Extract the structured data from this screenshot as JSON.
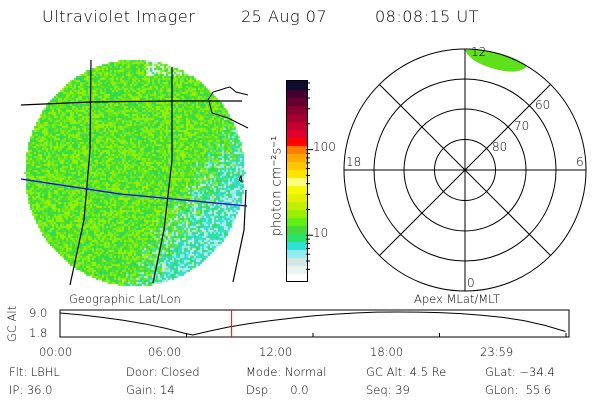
{
  "header": {
    "instrument": "Ultraviolet Imager",
    "date": "25 Aug 07",
    "time": "08:08:15 UT"
  },
  "geo_panel": {
    "label": "Geographic Lat/Lon",
    "grid_color": "#000000",
    "equator_color": "#0000ff"
  },
  "colorbar": {
    "unit_label": "photon cm⁻²s⁻¹",
    "scale": "log",
    "range": [
      3,
      650
    ],
    "tick_labels": [
      "100",
      "10"
    ],
    "colors": [
      "#ffffff",
      "#eaf4ee",
      "#d4e6e4",
      "#90ecf2",
      "#2ee0d8",
      "#2ae06c",
      "#46d83c",
      "#60f012",
      "#98f000",
      "#c0f000",
      "#e4f000",
      "#f6fa00",
      "#ffff80",
      "#ffe400",
      "#ffc800",
      "#ffa800",
      "#ff7e00",
      "#ff0000",
      "#e00030",
      "#c40030",
      "#a60030",
      "#860030",
      "#660030",
      "#440030",
      "#0c0c30"
    ]
  },
  "polar_panel": {
    "label": "Apex MLat/MLT",
    "mlt_labels": {
      "top": "12",
      "right": "6",
      "bottom": "0",
      "left": "18"
    },
    "lat_labels": [
      "80",
      "70",
      "60"
    ]
  },
  "altitude_plot": {
    "ylabel": "GC Alt",
    "ytick_labels": [
      "9.0",
      "1.8"
    ],
    "ylim": [
      1.8,
      9.0
    ],
    "xtick_labels": [
      "00:00",
      "06:00",
      "12:00",
      "18:00",
      "23:59"
    ],
    "current_time_hours": 8.14,
    "marker_color": "#ff0000",
    "hours": [
      0,
      1,
      2,
      3,
      4,
      5,
      6,
      6.3,
      7,
      8,
      9,
      10,
      11,
      12,
      13,
      14,
      15,
      16,
      17,
      18,
      19,
      20,
      21,
      22,
      23,
      23.98
    ],
    "altitude_re": [
      8.7,
      8.1,
      7.3,
      6.4,
      5.3,
      3.9,
      2.2,
      1.8,
      2.9,
      4.3,
      5.4,
      6.3,
      7.1,
      7.8,
      8.3,
      8.7,
      8.95,
      9.0,
      8.95,
      8.8,
      8.5,
      8.0,
      7.3,
      6.3,
      4.8,
      2.9
    ]
  },
  "status": {
    "filter": "Flt: LBHL",
    "ip": "IP: 36.0",
    "door": "Door: Closed",
    "gain": "Gain: 14",
    "mode": "Mode: Normal",
    "dsp": "Dsp:     0.0",
    "gc_alt": "GC Alt: 4.5 Re",
    "seq": "Seq: 39",
    "glat": "GLat: −34.4",
    "glon": "GLon:  55.6"
  }
}
